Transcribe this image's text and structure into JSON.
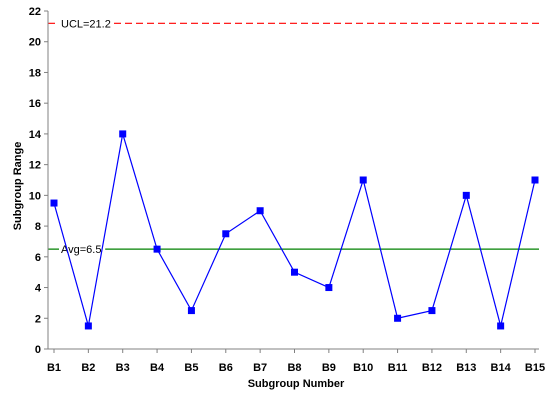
{
  "chart_data": {
    "type": "line",
    "title": "",
    "xlabel": "Subgroup Number",
    "ylabel": "Subgroup Range",
    "ylim": [
      0,
      22
    ],
    "yticks": [
      0,
      2,
      4,
      6,
      8,
      10,
      12,
      14,
      16,
      18,
      20,
      22
    ],
    "grid": false,
    "categories": [
      "B1",
      "B2",
      "B3",
      "B4",
      "B5",
      "B6",
      "B7",
      "B8",
      "B9",
      "B10",
      "B11",
      "B12",
      "B13",
      "B14",
      "B15"
    ],
    "series": [
      {
        "values": [
          9.5,
          1.5,
          14,
          6.5,
          2.5,
          7.5,
          9,
          5,
          4,
          11,
          2,
          2.5,
          10,
          1.5,
          11
        ],
        "color": "#0000ff",
        "marker": "square"
      }
    ],
    "reference_lines": [
      {
        "label": "UCL=21.2",
        "value": 21.2,
        "color": "#ff0000",
        "style": "dashed"
      },
      {
        "label": "Avg=6.5",
        "value": 6.5,
        "color": "#008000",
        "style": "solid"
      }
    ]
  }
}
